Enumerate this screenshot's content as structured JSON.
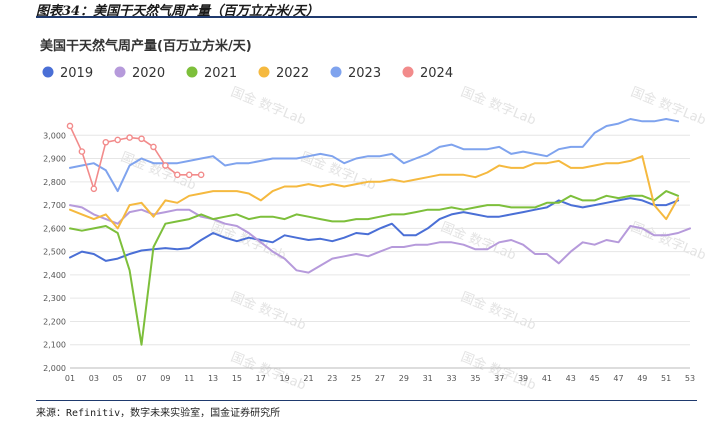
{
  "figure_title": "图表34：美国干天然气周产量（百万立方米/天）",
  "source": "来源：Refinitiv，数字未来实验室，国金证券研究所",
  "watermark": "国金 数字Lab",
  "chart_data": {
    "type": "line",
    "title": "美国干天然气周产量(百万立方米/天)",
    "xlabel": "",
    "ylabel": "",
    "ylim": [
      2000,
      3100
    ],
    "yticks": [
      "2,000",
      "2,100",
      "2,200",
      "2,300",
      "2,400",
      "2,500",
      "2,600",
      "2,700",
      "2,800",
      "2,900",
      "3,000"
    ],
    "xticks": [
      "01",
      "03",
      "05",
      "07",
      "09",
      "11",
      "13",
      "15",
      "17",
      "19",
      "21",
      "23",
      "25",
      "27",
      "29",
      "31",
      "33",
      "35",
      "37",
      "39",
      "41",
      "43",
      "45",
      "47",
      "49",
      "51",
      "53"
    ],
    "xlim": [
      1,
      53
    ],
    "grid": "horizontal",
    "legend": "top-left",
    "series": [
      {
        "name": "2019",
        "color": "#4a6fd6",
        "marker": false,
        "x": [
          1,
          2,
          3,
          4,
          5,
          6,
          7,
          8,
          9,
          10,
          11,
          12,
          13,
          14,
          15,
          16,
          17,
          18,
          19,
          20,
          21,
          22,
          23,
          24,
          25,
          26,
          27,
          28,
          29,
          30,
          31,
          32,
          33,
          34,
          35,
          36,
          37,
          38,
          39,
          40,
          41,
          42,
          43,
          44,
          45,
          46,
          47,
          48,
          49,
          50,
          51,
          52
        ],
        "values": [
          2475,
          2500,
          2490,
          2460,
          2470,
          2490,
          2505,
          2510,
          2515,
          2510,
          2515,
          2550,
          2580,
          2560,
          2545,
          2560,
          2550,
          2540,
          2570,
          2560,
          2550,
          2555,
          2545,
          2560,
          2580,
          2575,
          2600,
          2620,
          2570,
          2570,
          2600,
          2640,
          2660,
          2670,
          2660,
          2650,
          2650,
          2660,
          2670,
          2680,
          2690,
          2720,
          2700,
          2690,
          2700,
          2710,
          2720,
          2730,
          2720,
          2700,
          2700,
          2720
        ]
      },
      {
        "name": "2020",
        "color": "#b69adb",
        "marker": false,
        "x": [
          1,
          2,
          3,
          4,
          5,
          6,
          7,
          8,
          9,
          10,
          11,
          12,
          13,
          14,
          15,
          16,
          17,
          18,
          19,
          20,
          21,
          22,
          23,
          24,
          25,
          26,
          27,
          28,
          29,
          30,
          31,
          32,
          33,
          34,
          35,
          36,
          37,
          38,
          39,
          40,
          41,
          42,
          43,
          44,
          45,
          46,
          47,
          48,
          49,
          50,
          51,
          52,
          53
        ],
        "values": [
          2700,
          2690,
          2660,
          2640,
          2620,
          2670,
          2680,
          2660,
          2670,
          2680,
          2680,
          2650,
          2640,
          2620,
          2610,
          2580,
          2540,
          2500,
          2470,
          2420,
          2410,
          2440,
          2470,
          2480,
          2490,
          2480,
          2500,
          2520,
          2520,
          2530,
          2530,
          2540,
          2540,
          2530,
          2510,
          2510,
          2540,
          2550,
          2530,
          2490,
          2490,
          2450,
          2500,
          2540,
          2530,
          2550,
          2540,
          2610,
          2600,
          2570,
          2570,
          2580,
          2600
        ]
      },
      {
        "name": "2021",
        "color": "#7dbf3b",
        "marker": false,
        "x": [
          1,
          2,
          3,
          4,
          5,
          6,
          7,
          8,
          9,
          10,
          11,
          12,
          13,
          14,
          15,
          16,
          17,
          18,
          19,
          20,
          21,
          22,
          23,
          24,
          25,
          26,
          27,
          28,
          29,
          30,
          31,
          32,
          33,
          34,
          35,
          36,
          37,
          38,
          39,
          40,
          41,
          42,
          43,
          44,
          45,
          46,
          47,
          48,
          49,
          50,
          51,
          52
        ],
        "values": [
          2600,
          2590,
          2600,
          2610,
          2580,
          2420,
          2100,
          2520,
          2620,
          2630,
          2640,
          2660,
          2640,
          2650,
          2660,
          2640,
          2650,
          2650,
          2640,
          2660,
          2650,
          2640,
          2630,
          2630,
          2640,
          2640,
          2650,
          2660,
          2660,
          2670,
          2680,
          2680,
          2690,
          2680,
          2690,
          2700,
          2700,
          2690,
          2690,
          2690,
          2710,
          2710,
          2740,
          2720,
          2720,
          2740,
          2730,
          2740,
          2740,
          2720,
          2760,
          2740
        ]
      },
      {
        "name": "2022",
        "color": "#f5b93f",
        "marker": false,
        "x": [
          1,
          2,
          3,
          4,
          5,
          6,
          7,
          8,
          9,
          10,
          11,
          12,
          13,
          14,
          15,
          16,
          17,
          18,
          19,
          20,
          21,
          22,
          23,
          24,
          25,
          26,
          27,
          28,
          29,
          30,
          31,
          32,
          33,
          34,
          35,
          36,
          37,
          38,
          39,
          40,
          41,
          42,
          43,
          44,
          45,
          46,
          47,
          48,
          49,
          50,
          51,
          52
        ],
        "values": [
          2680,
          2660,
          2640,
          2660,
          2600,
          2700,
          2710,
          2650,
          2720,
          2710,
          2740,
          2750,
          2760,
          2760,
          2760,
          2750,
          2720,
          2760,
          2780,
          2780,
          2790,
          2780,
          2790,
          2780,
          2790,
          2800,
          2800,
          2810,
          2800,
          2810,
          2820,
          2830,
          2830,
          2830,
          2820,
          2840,
          2870,
          2860,
          2860,
          2880,
          2880,
          2890,
          2860,
          2860,
          2870,
          2880,
          2880,
          2890,
          2910,
          2700,
          2640,
          2730
        ]
      },
      {
        "name": "2023",
        "color": "#7fa3ee",
        "marker": false,
        "x": [
          1,
          2,
          3,
          4,
          5,
          6,
          7,
          8,
          9,
          10,
          11,
          12,
          13,
          14,
          15,
          16,
          17,
          18,
          19,
          20,
          21,
          22,
          23,
          24,
          25,
          26,
          27,
          28,
          29,
          30,
          31,
          32,
          33,
          34,
          35,
          36,
          37,
          38,
          39,
          40,
          41,
          42,
          43,
          44,
          45,
          46,
          47,
          48,
          49,
          50,
          51,
          52
        ],
        "values": [
          2860,
          2870,
          2880,
          2850,
          2760,
          2870,
          2900,
          2880,
          2880,
          2880,
          2890,
          2900,
          2910,
          2870,
          2880,
          2880,
          2890,
          2900,
          2900,
          2900,
          2910,
          2920,
          2910,
          2880,
          2900,
          2910,
          2910,
          2920,
          2880,
          2900,
          2920,
          2950,
          2960,
          2940,
          2940,
          2940,
          2950,
          2920,
          2930,
          2920,
          2910,
          2940,
          2950,
          2950,
          3010,
          3040,
          3050,
          3070,
          3060,
          3060,
          3070,
          3060
        ]
      },
      {
        "name": "2024",
        "color": "#f28b8b",
        "marker": true,
        "x": [
          1,
          2,
          3,
          4,
          5,
          6,
          7,
          8,
          9,
          10,
          11,
          12
        ],
        "values": [
          3040,
          2930,
          2770,
          2970,
          2980,
          2990,
          2985,
          2950,
          2870,
          2830,
          2830,
          2830
        ]
      }
    ]
  }
}
